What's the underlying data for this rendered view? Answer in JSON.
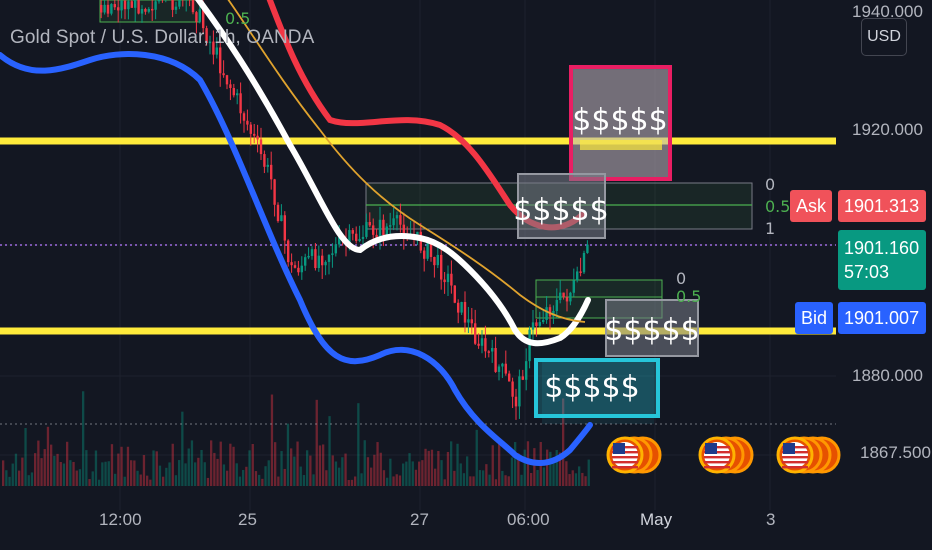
{
  "header": {
    "symbol_title": "Gold Spot / U.S. Dollar, 1h, OANDA",
    "currency_button": "USD"
  },
  "price_axis": {
    "ticks": [
      "1940.000",
      "1920.000",
      "1880.000",
      "1867.500"
    ]
  },
  "time_axis": {
    "ticks": [
      "12:00",
      "25",
      "27",
      "06:00",
      "May",
      "3"
    ]
  },
  "quote": {
    "ask_label": "Ask",
    "ask_price": "1901.313",
    "last_price": "1901.160",
    "countdown": "57:03",
    "bid_label": "Bid",
    "bid_price": "1901.007"
  },
  "annotations": {
    "dollar_label": "$$$$$",
    "fib_labels_upper": [
      "0",
      "0.5",
      "1"
    ],
    "fib_labels_lower": [
      "0",
      "0.5"
    ],
    "fib_label_top": "0.5"
  },
  "colors": {
    "bg": "#131722",
    "up": "#089981",
    "down": "#f23645",
    "yellow": "#ffeb3b",
    "red_band": "#f23645",
    "blue_band": "#2962ff",
    "white_line": "#ffffff",
    "orange_ma": "#e0a32e",
    "grid": "#1e222d"
  }
}
